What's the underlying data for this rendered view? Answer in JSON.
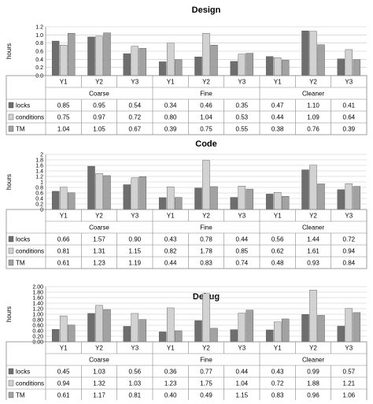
{
  "chart_data": [
    {
      "type": "bar",
      "title": "Design",
      "ylabel": "hours",
      "ylim": [
        0,
        1.2
      ],
      "yticks": [
        "0.0",
        "0.2",
        "0.4",
        "0.6",
        "0.8",
        "1.0",
        "1.2"
      ],
      "categories": [
        "Y1",
        "Y2",
        "Y3",
        "Y1",
        "Y2",
        "Y3",
        "Y1",
        "Y2",
        "Y3"
      ],
      "groups": [
        "Coarse",
        "Fine",
        "Cleaner"
      ],
      "series": [
        {
          "name": "locks",
          "color": "#6e6e6e",
          "labels": [
            "0.85",
            "0.95",
            "0.54",
            "0.34",
            "0.46",
            "0.35",
            "0.47",
            "1.10",
            "0.41"
          ],
          "values": [
            0.85,
            0.95,
            0.54,
            0.34,
            0.46,
            0.35,
            0.47,
            1.1,
            0.41
          ]
        },
        {
          "name": "conditions",
          "color": "#d2d2d2",
          "labels": [
            "0.75",
            "0.97",
            "0.72",
            "0.80",
            "1.04",
            "0.53",
            "0.44",
            "1.09",
            "0.64"
          ],
          "values": [
            0.75,
            0.97,
            0.72,
            0.8,
            1.04,
            0.53,
            0.44,
            1.09,
            0.64
          ]
        },
        {
          "name": "TM",
          "color": "#a2a2a2",
          "labels": [
            "1.04",
            "1.05",
            "0.67",
            "0.39",
            "0.75",
            "0.55",
            "0.38",
            "0.76",
            "0.39"
          ],
          "values": [
            1.04,
            1.05,
            0.67,
            0.39,
            0.75,
            0.55,
            0.38,
            0.76,
            0.39
          ]
        }
      ]
    },
    {
      "type": "bar",
      "title": "Code",
      "ylabel": "hours",
      "ylim": [
        0,
        2.0
      ],
      "yticks": [
        "0",
        "0.2",
        "0.4",
        "0.6",
        "0.8",
        "1",
        "1.2",
        "1.4",
        "1.6",
        "1.8",
        "2"
      ],
      "categories": [
        "Y1",
        "Y2",
        "Y3",
        "Y1",
        "Y2",
        "Y3",
        "Y1",
        "Y2",
        "Y3"
      ],
      "groups": [
        "Coarse",
        "Fine",
        "Cleaner"
      ],
      "series": [
        {
          "name": "locks",
          "color": "#6e6e6e",
          "labels": [
            "0.66",
            "1.57",
            "0.90",
            "0.43",
            "0.78",
            "0.44",
            "0.56",
            "1.44",
            "0.72"
          ],
          "values": [
            0.66,
            1.57,
            0.9,
            0.43,
            0.78,
            0.44,
            0.56,
            1.44,
            0.72
          ]
        },
        {
          "name": "conditions",
          "color": "#d2d2d2",
          "labels": [
            "0.81",
            "1.31",
            "1.15",
            "0.82",
            "1.78",
            "0.85",
            "0.62",
            "1.61",
            "0.94"
          ],
          "values": [
            0.81,
            1.31,
            1.15,
            0.82,
            1.78,
            0.85,
            0.62,
            1.61,
            0.94
          ]
        },
        {
          "name": "TM",
          "color": "#a2a2a2",
          "labels": [
            "0.61",
            "1.23",
            "1.19",
            "0.44",
            "0.83",
            "0.74",
            "0.48",
            "0.93",
            "0.84"
          ],
          "values": [
            0.61,
            1.23,
            1.19,
            0.44,
            0.83,
            0.74,
            0.48,
            0.93,
            0.84
          ]
        }
      ]
    },
    {
      "type": "bar",
      "title": "Debug",
      "ylabel": "hours",
      "ylim": [
        0,
        2.0
      ],
      "yticks": [
        "0.00",
        "0.20",
        "0.40",
        "0.60",
        "0.80",
        "1.00",
        "1.20",
        "1.40",
        "1.60",
        "1.80",
        "2.00"
      ],
      "categories": [
        "Y1",
        "Y2",
        "Y3",
        "Y1",
        "Y2",
        "Y3",
        "Y1",
        "Y2",
        "Y3"
      ],
      "groups": [
        "Coarse",
        "Fine",
        "Cleaner"
      ],
      "series": [
        {
          "name": "locks",
          "color": "#6e6e6e",
          "labels": [
            "0.45",
            "1.03",
            "0.56",
            "0.36",
            "0.77",
            "0.44",
            "0.43",
            "0.99",
            "0.57"
          ],
          "values": [
            0.45,
            1.03,
            0.56,
            0.36,
            0.77,
            0.44,
            0.43,
            0.99,
            0.57
          ]
        },
        {
          "name": "conditions",
          "color": "#d2d2d2",
          "labels": [
            "0.94",
            "1.32",
            "1.03",
            "1.23",
            "1.75",
            "1.04",
            "0.72",
            "1.88",
            "1.21"
          ],
          "values": [
            0.94,
            1.32,
            1.03,
            1.23,
            1.75,
            1.04,
            0.72,
            1.88,
            1.21
          ]
        },
        {
          "name": "TM",
          "color": "#a2a2a2",
          "labels": [
            "0.61",
            "1.17",
            "0.81",
            "0.40",
            "0.49",
            "1.15",
            "0.83",
            "0.96",
            "1.06"
          ],
          "values": [
            0.61,
            1.17,
            0.81,
            0.4,
            0.49,
            1.15,
            0.83,
            0.96,
            1.06
          ]
        }
      ]
    }
  ]
}
